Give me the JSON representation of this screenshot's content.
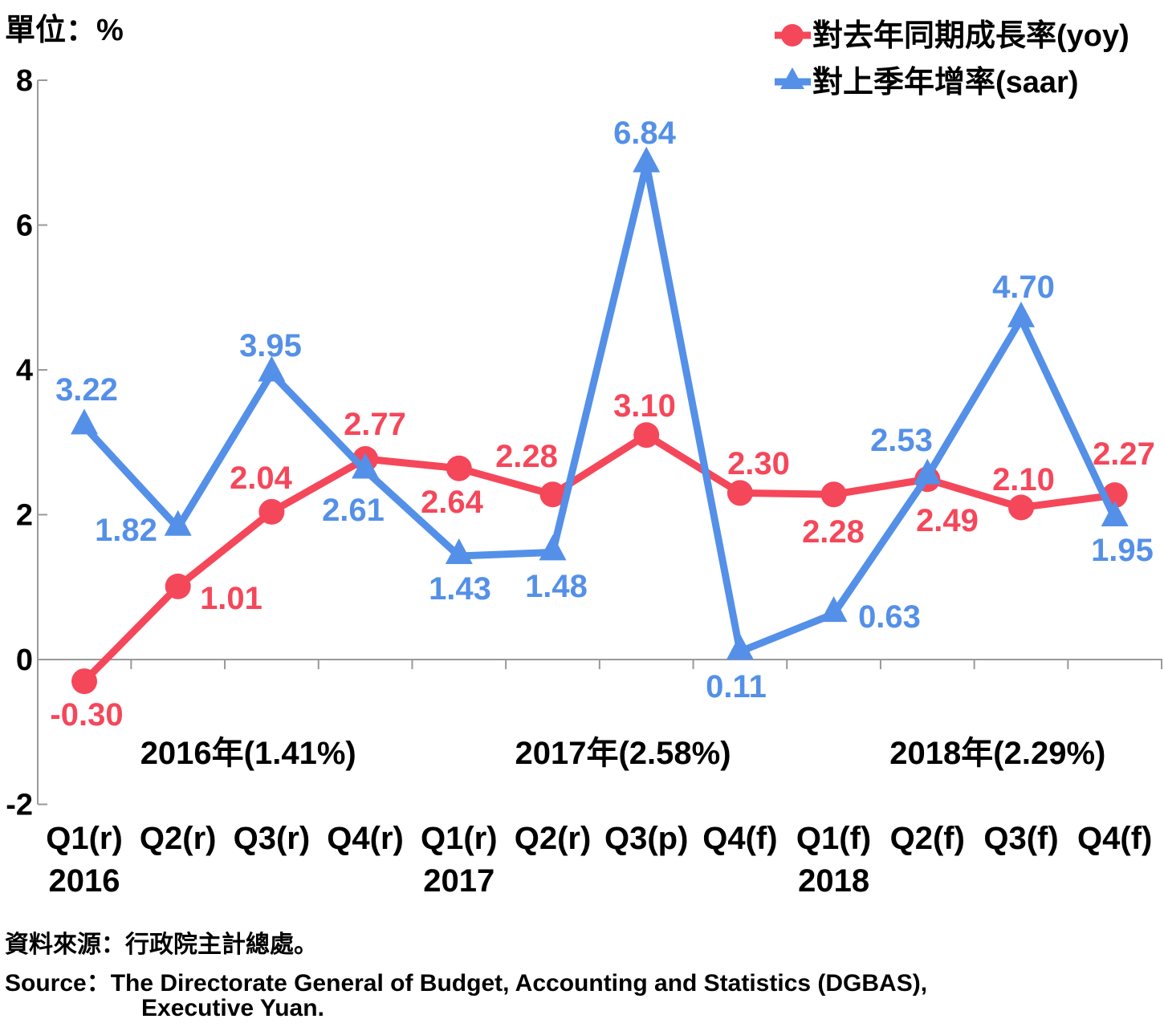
{
  "chart_data": {
    "type": "line",
    "unit_label": "單位：%",
    "categories": [
      "Q1(r)",
      "Q2(r)",
      "Q3(r)",
      "Q4(r)",
      "Q1(r)",
      "Q2(r)",
      "Q3(p)",
      "Q4(f)",
      "Q1(f)",
      "Q2(f)",
      "Q3(f)",
      "Q4(f)"
    ],
    "year_labels": [
      "2016",
      "2017",
      "2018"
    ],
    "annual_labels": [
      "2016年(1.41%)",
      "2017年(2.58%)",
      "2018年(2.29%)"
    ],
    "ylim": [
      -2,
      8
    ],
    "yticks": [
      "-2",
      "0",
      "2",
      "4",
      "6",
      "8"
    ],
    "series": [
      {
        "name": "對去年同期成長率(yoy)",
        "color": "#F5475A",
        "marker": "circle",
        "values": [
          -0.3,
          1.01,
          2.04,
          2.77,
          2.64,
          2.28,
          3.1,
          2.3,
          2.28,
          2.49,
          2.1,
          2.27
        ],
        "labels": [
          "-0.30",
          "1.01",
          "2.04",
          "2.77",
          "2.64",
          "2.28",
          "3.10",
          "2.30",
          "2.28",
          "2.49",
          "2.10",
          "2.27"
        ]
      },
      {
        "name": "對上季年增率(saar)",
        "color": "#5490E8",
        "marker": "triangle",
        "values": [
          3.22,
          1.82,
          3.95,
          2.61,
          1.43,
          1.48,
          6.84,
          0.11,
          0.63,
          2.53,
          4.7,
          1.95
        ],
        "labels": [
          "3.22",
          "1.82",
          "3.95",
          "2.61",
          "1.43",
          "1.48",
          "6.84",
          "0.11",
          "0.63",
          "2.53",
          "4.70",
          "1.95"
        ]
      }
    ],
    "legend_position": "top-right"
  },
  "source": {
    "zh": "資料來源：行政院主計總處。",
    "en_line1": "Source：The Directorate General of Budget, Accounting and Statistics (DGBAS),",
    "en_line2": "Executive Yuan."
  }
}
